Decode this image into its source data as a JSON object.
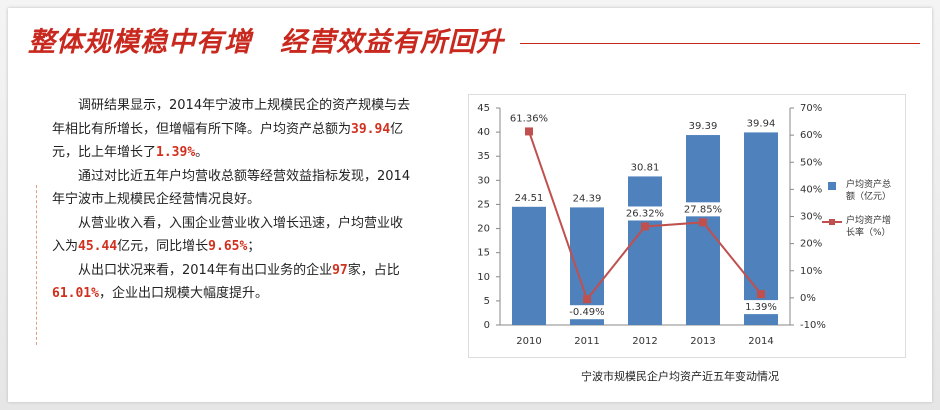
{
  "header": {
    "title": [
      "整体规模稳中有增",
      "经营效益有所回升"
    ]
  },
  "paragraphs": [
    [
      "调研结果显示，2014年宁波市上规模民企的资产规模与去年相比有所增长，但增幅有所下降。户均资产总额为",
      "39.94",
      "亿元，比上年增长了",
      "1.39%",
      "。"
    ],
    [
      "通过对比近五年户均营收总额等经营效益指标发现，2014年宁波市上规模民企经营情况良好。"
    ],
    [
      "从营业收入看，入围企业营业收入增长迅速，户均营业收入为",
      "45.44",
      "亿元，同比增长",
      "9.65%",
      "；"
    ],
    [
      "从出口状况来看，2014年有出口业务的企业",
      "97",
      "家，占比",
      "61.01%",
      "，企业出口规模大幅度提升。"
    ]
  ],
  "chart_data": {
    "type": "bar-line",
    "categories": [
      "2010",
      "2011",
      "2012",
      "2013",
      "2014"
    ],
    "series": [
      {
        "name": "户均资产总额（亿元）",
        "color": "#4f81bd",
        "values": [
          24.51,
          24.39,
          30.81,
          39.39,
          39.94
        ]
      },
      {
        "name": "户均资产增长率（%）",
        "color": "#c0504d",
        "axis": "y2",
        "values": [
          61.36,
          -0.49,
          26.32,
          27.85,
          1.39
        ],
        "value_labels": [
          "61.36%",
          "-0.49%",
          "26.32%",
          "27.85%",
          "1.39%"
        ]
      }
    ],
    "ylim": [
      0,
      45
    ],
    "yticks": [
      0,
      5,
      10,
      15,
      20,
      25,
      30,
      35,
      40,
      45
    ],
    "y2lim": [
      -10,
      70
    ],
    "y2ticks": [
      {
        "value": -10,
        "label": "-10%"
      },
      {
        "value": 0,
        "label": "0%"
      },
      {
        "value": 10,
        "label": "10%"
      },
      {
        "value": 20,
        "label": "20%"
      },
      {
        "value": 30,
        "label": "30%"
      },
      {
        "value": 40,
        "label": "40%"
      },
      {
        "value": 50,
        "label": "50%"
      },
      {
        "value": 60,
        "label": "60%"
      },
      {
        "value": 70,
        "label": "70%"
      }
    ],
    "caption": "宁波市规模民企户均资产近五年变动情况"
  }
}
